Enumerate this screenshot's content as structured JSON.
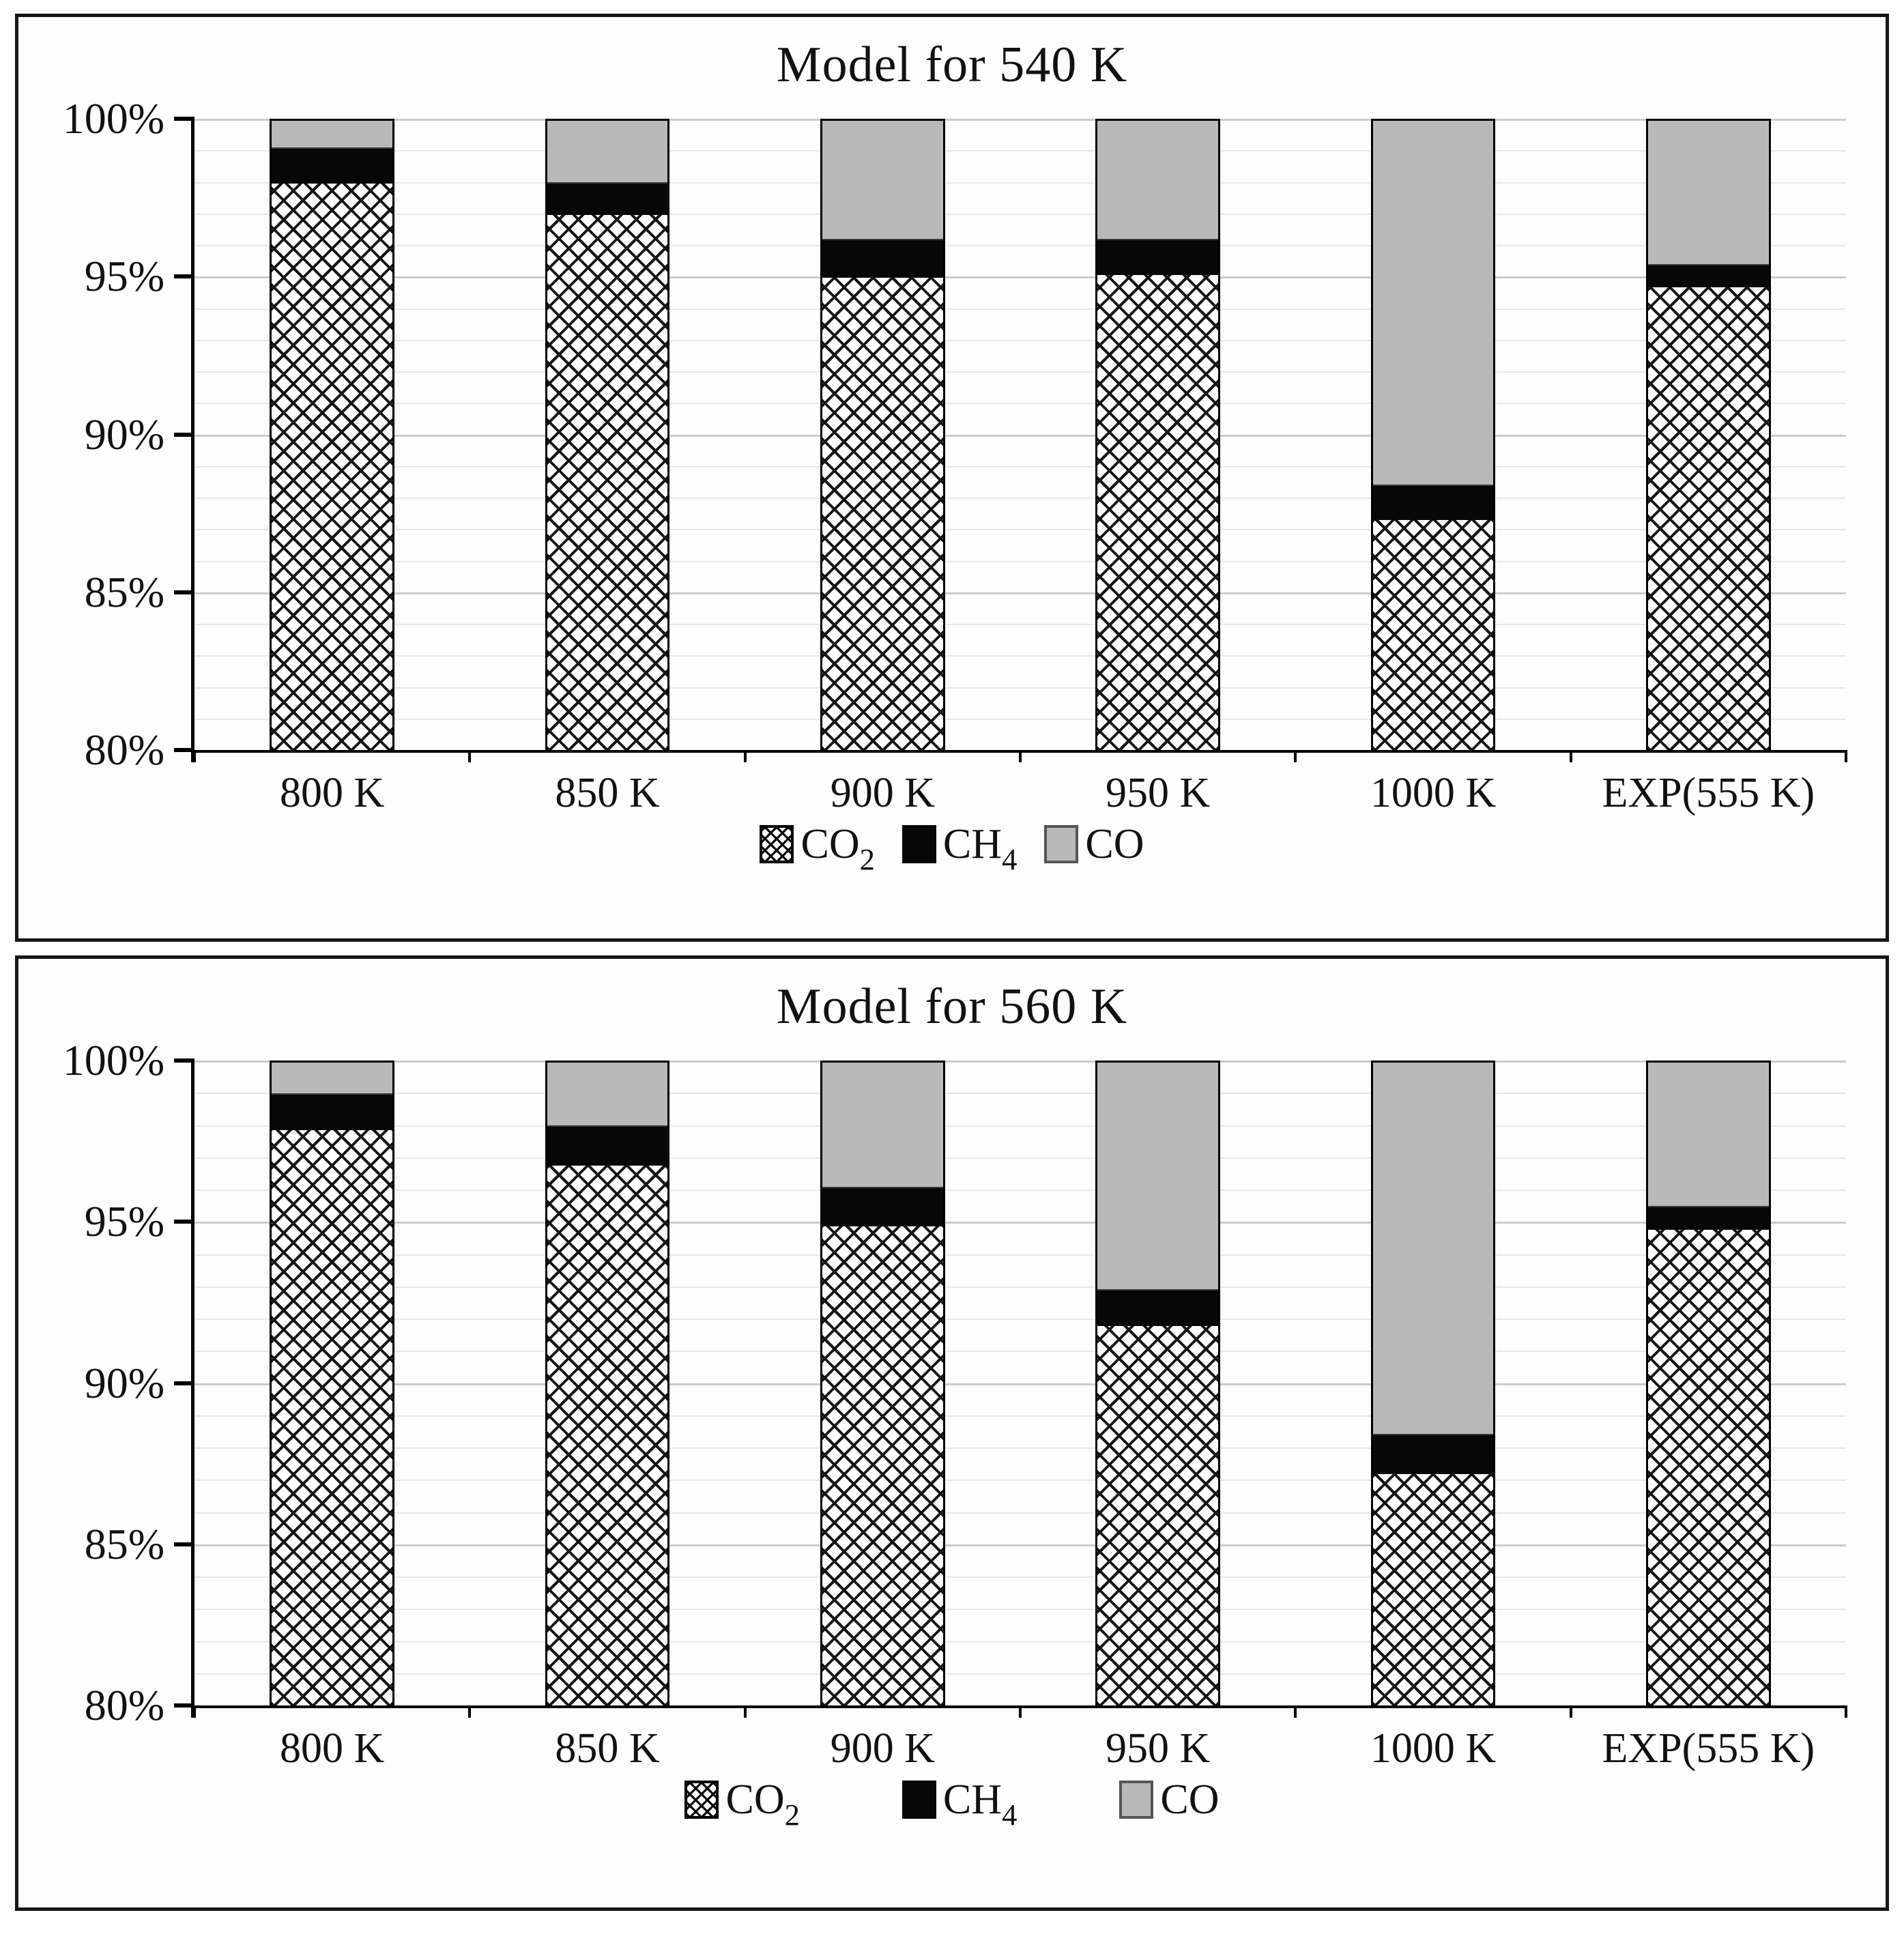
{
  "chart_data": [
    {
      "type": "bar",
      "stacked": true,
      "title": "Model for 540 K",
      "categories": [
        "800 K",
        "850 K",
        "900 K",
        "950 K",
        "1000 K",
        "EXP(555 K)"
      ],
      "series": [
        {
          "name": "CO2",
          "label": "CO",
          "sub": "2",
          "values": [
            98.0,
            97.0,
            95.0,
            95.1,
            87.3,
            94.7
          ]
        },
        {
          "name": "CH4",
          "label": "CH",
          "sub": "4",
          "values": [
            1.1,
            1.0,
            1.2,
            1.1,
            1.1,
            0.7
          ]
        },
        {
          "name": "CO",
          "label": "CO",
          "sub": "",
          "values": [
            0.9,
            2.0,
            3.8,
            3.8,
            11.6,
            4.6
          ]
        }
      ],
      "ylim": [
        80,
        100
      ],
      "y_tick_labels": [
        "100%",
        "95%",
        "90%",
        "85%",
        "80%"
      ],
      "y_tick_values": [
        100,
        95,
        90,
        85,
        80
      ],
      "grid": "horizontal minor every 1%, major every 5%",
      "legend_position": "bottom",
      "note": "CO2 values are cumulative tops from 0; CH4 and CO values are segment sizes; each bar sums to 100%"
    },
    {
      "type": "bar",
      "stacked": true,
      "title": "Model for 560 K",
      "categories": [
        "800 K",
        "850 K",
        "900 K",
        "950 K",
        "1000 K",
        "EXP(555 K)"
      ],
      "series": [
        {
          "name": "CO2",
          "label": "CO",
          "sub": "2",
          "values": [
            97.9,
            96.8,
            94.9,
            91.8,
            87.2,
            94.8
          ]
        },
        {
          "name": "CH4",
          "label": "CH",
          "sub": "4",
          "values": [
            1.1,
            1.2,
            1.2,
            1.1,
            1.2,
            0.7
          ]
        },
        {
          "name": "CO",
          "label": "CO",
          "sub": "",
          "values": [
            1.0,
            2.0,
            3.9,
            7.1,
            11.6,
            4.5
          ]
        }
      ],
      "ylim": [
        80,
        100
      ],
      "y_tick_labels": [
        "100%",
        "95%",
        "90%",
        "85%",
        "80%"
      ],
      "y_tick_values": [
        100,
        95,
        90,
        85,
        80
      ],
      "grid": "horizontal minor every 1%, major every 5%",
      "legend_position": "bottom",
      "note": "CO2 values are cumulative tops from 0; CH4 and CO values are segment sizes; each bar sums to 100%"
    }
  ],
  "styles": {
    "co2_fill": "black diamond crosshatch on white",
    "ch4_fill": "#070707",
    "co_fill": "#b9b9b9",
    "grid_minor_color": "#e7e7e7",
    "grid_major_color": "#cccccc",
    "axis_color": "#000000",
    "panel_border_color": "#161616"
  }
}
